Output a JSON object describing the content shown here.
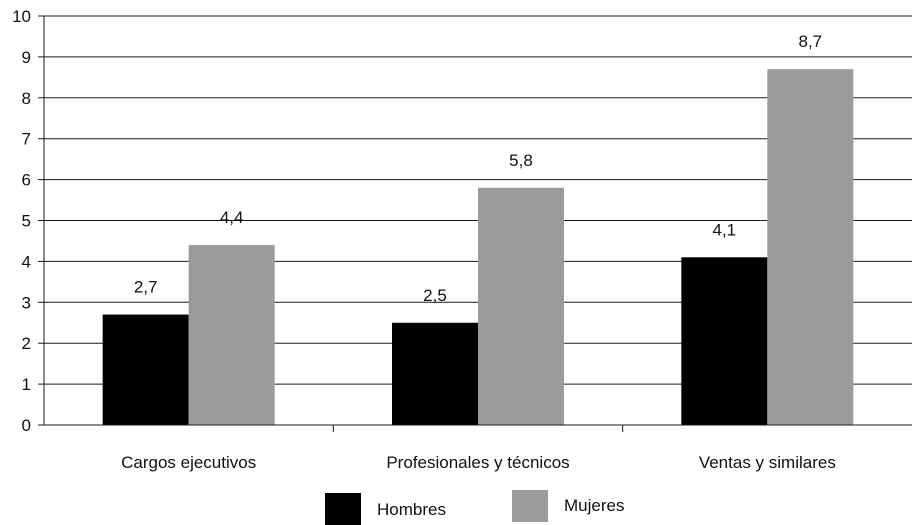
{
  "chart_data": {
    "type": "bar",
    "categories": [
      "Cargos ejecutivos",
      "Profesionales y técnicos",
      "Ventas y similares"
    ],
    "series": [
      {
        "name": "Hombres",
        "values": [
          2.7,
          2.5,
          4.1
        ],
        "labels": [
          "2,7",
          "2,5",
          "4,1"
        ],
        "color": "#000000"
      },
      {
        "name": "Mujeres",
        "values": [
          4.4,
          5.8,
          8.7
        ],
        "labels": [
          "4,4",
          "5,8",
          "8,7"
        ],
        "color": "#9b9b9e"
      }
    ],
    "yticks": [
      "0",
      "1",
      "2",
      "3",
      "4",
      "5",
      "6",
      "7",
      "8",
      "9",
      "10"
    ],
    "ylim": [
      0,
      10
    ],
    "grid": true,
    "legend_position": "bottom-center"
  }
}
